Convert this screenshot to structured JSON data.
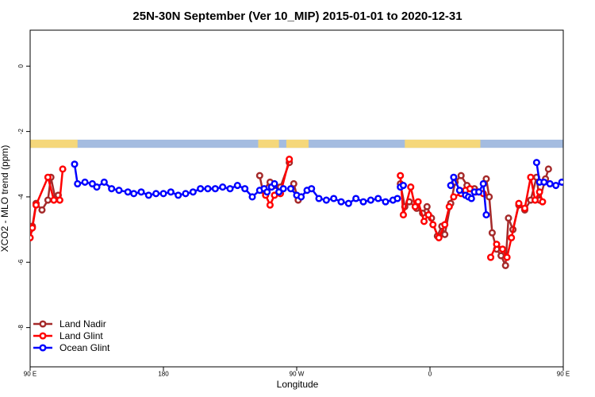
{
  "chart_data": {
    "type": "line",
    "title": "25N-30N September (Ver 10_MIP)   2015-01-01 to 2020-12-31",
    "xlabel": "Longitude",
    "ylabel": "XCO2 - MLO trend (ppm)",
    "xlim": [
      90,
      450
    ],
    "ylim": [
      -9.2,
      1.1
    ],
    "x_ticks": [
      {
        "value": 90,
        "label": "90 E"
      },
      {
        "value": 180,
        "label": "180"
      },
      {
        "value": 270,
        "label": "90 W"
      },
      {
        "value": 360,
        "label": "0"
      },
      {
        "value": 450,
        "label": "90 E"
      },
      {
        "value": 540,
        "label": "180"
      }
    ],
    "y_ticks": [
      {
        "value": 0,
        "label": "0"
      },
      {
        "value": -2,
        "label": "-2"
      },
      {
        "value": -4,
        "label": "-4"
      },
      {
        "value": -6,
        "label": "-6"
      },
      {
        "value": -8,
        "label": "-8"
      }
    ],
    "grid": false,
    "legend_position": "bottom-left",
    "land_mask": {
      "y_range": [
        -2.5,
        -2.25
      ],
      "land_color": "#F5D77A",
      "ocean_color": "#A4BCE0",
      "land_spans": [
        [
          90,
          122
        ],
        [
          244,
          258
        ],
        [
          263,
          278
        ],
        [
          343,
          394
        ],
        [
          476,
          540
        ]
      ]
    },
    "series": [
      {
        "name": "Land Nadir",
        "color": "#A52A2A",
        "segments": [
          {
            "x": [
              90,
              91.5,
              94,
              98,
              102,
              104,
              107,
              109
            ],
            "y": [
              -5.0,
              -4.9,
              -4.2,
              -4.4,
              -4.1,
              -3.4,
              -4.05,
              -3.95
            ]
          },
          {
            "x": [
              245,
              247,
              252,
              255,
              259,
              265
            ],
            "y": [
              -3.35,
              -3.8,
              -3.55,
              -3.65,
              -3.7,
              -2.95
            ]
          },
          {
            "x": [
              268,
              271
            ],
            "y": [
              -3.6,
              -4.1
            ]
          },
          {
            "x": [
              340,
              343,
              346,
              351,
              355,
              358,
              361,
              365,
              368,
              370,
              374,
              377,
              381,
              385,
              390
            ],
            "y": [
              -3.6,
              -4.3,
              -4.15,
              -4.35,
              -4.5,
              -4.3,
              -4.65,
              -5.2,
              -4.9,
              -5.15,
              -4.2,
              -3.55,
              -3.35,
              -3.65,
              -3.75
            ]
          },
          {
            "x": [
              398,
              400,
              402,
              405,
              408,
              411,
              413,
              416,
              420,
              424,
              428,
              432,
              434,
              438,
              440
            ],
            "y": [
              -3.45,
              -4.0,
              -5.1,
              -5.6,
              -5.8,
              -6.1,
              -4.65,
              -5.0,
              -4.25,
              -4.4,
              -4.1,
              -3.4,
              -4.1,
              -3.45,
              -3.15
            ]
          }
        ]
      },
      {
        "name": "Land Glint",
        "color": "#FF0000",
        "segments": [
          {
            "x": [
              90,
              91.5,
              94,
              102,
              106,
              110,
              112
            ],
            "y": [
              -5.25,
              -4.95,
              -4.25,
              -3.4,
              -4.1,
              -4.1,
              -3.15
            ]
          },
          {
            "x": [
              249,
              252,
              255,
              259,
              265
            ],
            "y": [
              -3.95,
              -4.25,
              -3.95,
              -3.9,
              -2.85
            ]
          },
          {
            "x": [
              340,
              342,
              347,
              350,
              352,
              356,
              359,
              362,
              366,
              370,
              373
            ],
            "y": [
              -3.35,
              -4.55,
              -3.7,
              -4.3,
              -4.15,
              -4.75,
              -4.55,
              -4.85,
              -5.25,
              -4.85,
              -4.3
            ]
          },
          {
            "x": [
              376,
              381,
              384,
              387,
              391,
              396
            ],
            "y": [
              -4.0,
              -3.9,
              -3.8,
              -3.75,
              -3.85,
              -3.9
            ]
          },
          {
            "x": [
              401,
              405,
              409,
              412,
              415,
              420,
              424,
              428,
              431,
              434,
              436
            ],
            "y": [
              -5.85,
              -5.45,
              -5.6,
              -5.85,
              -5.25,
              -4.2,
              -4.35,
              -3.4,
              -4.1,
              -3.85,
              -4.15
            ]
          }
        ]
      },
      {
        "name": "Ocean Glint",
        "color": "#0000FF",
        "segments": [
          {
            "x": [
              120,
              122,
              125,
              128,
              130,
              133,
              136,
              139,
              142,
              145,
              147,
              150,
              153,
              156,
              159,
              162,
              165,
              168,
              171,
              174,
              177,
              180,
              183,
              186,
              189,
              192,
              195,
              198,
              201,
              204,
              207,
              210,
              213,
              216,
              219,
              222,
              225,
              228,
              231,
              234,
              237,
              240,
              243,
              246,
              249,
              252,
              255,
              258,
              261,
              264,
              267,
              270,
              273,
              276,
              279,
              282,
              285,
              288,
              291,
              294,
              297,
              300,
              303,
              306,
              309,
              312,
              315,
              318,
              321,
              324,
              327,
              330,
              333,
              336
            ],
            "y": [
              -3.0,
              -3.55,
              -3.55,
              -3.6,
              -3.65,
              -3.55,
              -3.7,
              -3.55,
              -3.6,
              -3.75,
              -3.8,
              -3.75,
              -3.85,
              -3.8,
              -3.85,
              -3.9,
              -3.85,
              -3.95,
              -3.9,
              -3.9,
              -3.9,
              -3.85,
              -3.95,
              -3.9,
              -3.85,
              -3.9,
              -3.8,
              -3.75,
              -3.8,
              -3.8,
              -3.75,
              -3.7,
              -3.7,
              -3.65,
              -3.75,
              -3.7,
              -3.75,
              -3.65,
              -3.8,
              -3.85,
              -3.75,
              -3.85,
              -3.8,
              -3.7,
              -3.65,
              -3.8,
              -3.95,
              -3.85,
              -3.8,
              -3.9,
              -3.85,
              -3.95,
              -4.0,
              -4.05,
              -4.1,
              -4.05,
              -4.1,
              -4.15,
              -4.2,
              -4.15,
              -4.1,
              -4.05,
              -4.1,
              -4.2,
              -4.15,
              -4.1,
              -4.2,
              -4.1,
              -4.05,
              -4.1,
              -4.15,
              -4.1,
              -4.05,
              -3.85
            ]
          }
        ]
      }
    ],
    "ocean_glint_segments": [
      {
        "x": [
          120,
          122,
          127,
          132,
          135,
          140,
          145,
          150,
          156,
          160,
          165,
          170,
          175,
          180,
          185,
          190,
          195,
          200,
          205,
          210,
          215,
          220,
          225,
          230,
          235,
          240,
          245,
          248,
          250,
          253,
          255,
          258,
          261
        ],
        "y": [
          -3.0,
          -3.6,
          -3.55,
          -3.6,
          -3.7,
          -3.55,
          -3.75,
          -3.8,
          -3.85,
          -3.9,
          -3.85,
          -3.95,
          -3.9,
          -3.9,
          -3.85,
          -3.95,
          -3.9,
          -3.85,
          -3.75,
          -3.75,
          -3.75,
          -3.7,
          -3.75,
          -3.65,
          -3.75,
          -4.0,
          -3.8,
          -3.75,
          -3.85,
          -3.7,
          -3.6,
          -3.85,
          -3.75
        ]
      },
      {
        "x": [
          266,
          270,
          273,
          277,
          280,
          285,
          290,
          295,
          300,
          305,
          310,
          315,
          320,
          325,
          330,
          335,
          338
        ],
        "y": [
          -3.75,
          -3.95,
          -4.0,
          -3.8,
          -3.75,
          -4.05,
          -4.1,
          -4.05,
          -4.15,
          -4.2,
          -4.05,
          -4.15,
          -4.1,
          -4.05,
          -4.15,
          -4.1,
          -4.05
        ]
      },
      {
        "x": [
          340,
          342
        ],
        "y": [
          -3.7,
          -3.65
        ]
      },
      {
        "x": [
          374,
          376,
          380,
          384,
          386,
          388,
          390,
          393,
          396,
          398
        ],
        "y": [
          -3.65,
          -3.4,
          -3.8,
          -3.95,
          -4.0,
          -4.05,
          -3.85,
          -3.85,
          -3.6,
          -4.55
        ]
      },
      {
        "x": [
          432,
          434,
          437,
          441,
          445,
          449,
          453,
          457,
          462,
          466,
          470,
          474,
          478,
          482,
          486,
          490,
          495,
          500
        ],
        "y": [
          -2.95,
          -3.55,
          -3.55,
          -3.6,
          -3.65,
          -3.55,
          -3.75,
          -3.75,
          -3.8,
          -3.85,
          -3.85,
          -3.9,
          -3.85,
          -3.95,
          -3.9,
          -3.85,
          -3.95,
          -3.95
        ]
      }
    ]
  },
  "legend": {
    "items": [
      "Land Nadir",
      "Land Glint",
      "Ocean Glint"
    ]
  }
}
